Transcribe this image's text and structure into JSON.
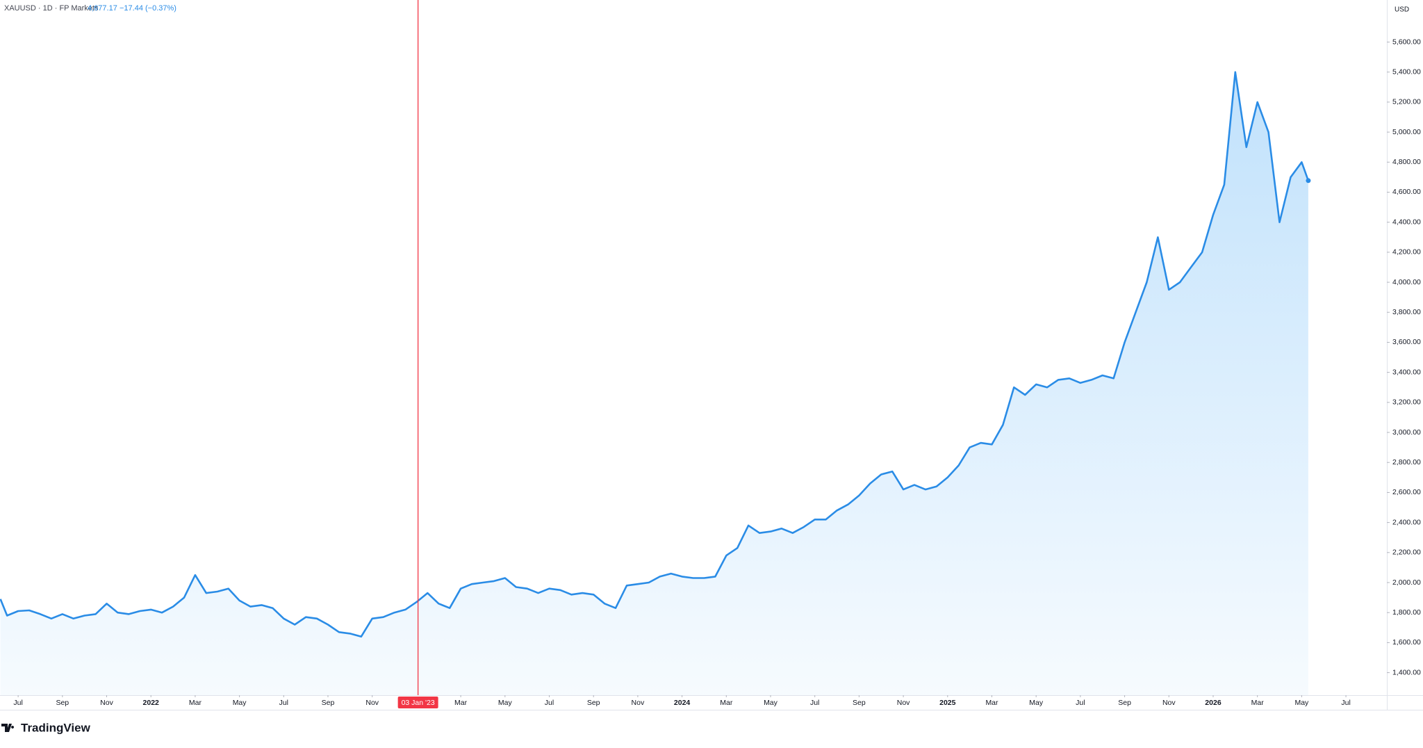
{
  "header": {
    "symbol": "XAUUSD · 1D · FP Markets",
    "price": "4,677.17",
    "change": "−17.44 (−0.37%)"
  },
  "brand": "TradingView",
  "chart_data": {
    "type": "area",
    "currency": "USD",
    "color": "#2a8ce6",
    "x": [
      -6.8,
      -6.5,
      -6,
      -5.5,
      -5,
      -4.5,
      -4,
      -3.5,
      -3,
      -2.5,
      -2,
      -1.5,
      -1,
      -0.5,
      0,
      0.5,
      1,
      1.5,
      2,
      2.5,
      3,
      3.5,
      4,
      4.5,
      5,
      5.5,
      6,
      6.5,
      7,
      7.5,
      8,
      8.5,
      9,
      9.5,
      10,
      10.5,
      11,
      11.5,
      12,
      12.5,
      13,
      13.5,
      14,
      14.5,
      15,
      15.5,
      16,
      16.5,
      17,
      17.5,
      18,
      18.5,
      19,
      19.5,
      20,
      20.5,
      21,
      21.5,
      22,
      22.5,
      23,
      23.5,
      24,
      24.5,
      25,
      25.5,
      26,
      26.5,
      27,
      27.5,
      28,
      28.5,
      29,
      29.5,
      30,
      30.5,
      31,
      31.5,
      32,
      32.5,
      33,
      33.5,
      34,
      34.5,
      35,
      35.5,
      36,
      36.5,
      37,
      37.5,
      38,
      38.5,
      39,
      39.5,
      40,
      40.5,
      41,
      41.5,
      42,
      42.5,
      43,
      43.5,
      44,
      44.5,
      45,
      45.5,
      46,
      46.5,
      47,
      47.5,
      48,
      48.5,
      49,
      49.5,
      50,
      50.5,
      51,
      51.5,
      52,
      52.3
    ],
    "series": [
      {
        "name": "XAUUSD",
        "color": "#2a8ce6",
        "values": [
          1890,
          1780,
          1810,
          1815,
          1790,
          1760,
          1790,
          1760,
          1780,
          1790,
          1860,
          1800,
          1790,
          1810,
          1820,
          1800,
          1840,
          1900,
          2050,
          1930,
          1940,
          1960,
          1880,
          1840,
          1850,
          1830,
          1760,
          1720,
          1770,
          1760,
          1720,
          1670,
          1660,
          1640,
          1760,
          1770,
          1800,
          1820,
          1870,
          1930,
          1860,
          1830,
          1960,
          1990,
          2000,
          2010,
          2030,
          1970,
          1960,
          1930,
          1960,
          1950,
          1920,
          1930,
          1920,
          1860,
          1830,
          1980,
          1990,
          2000,
          2040,
          2060,
          2040,
          2030,
          2030,
          2040,
          2180,
          2230,
          2380,
          2330,
          2340,
          2360,
          2330,
          2370,
          2420,
          2420,
          2480,
          2520,
          2580,
          2660,
          2720,
          2740,
          2620,
          2650,
          2620,
          2640,
          2700,
          2780,
          2900,
          2930,
          2920,
          3050,
          3300,
          3250,
          3320,
          3300,
          3350,
          3360,
          3330,
          3350,
          3380,
          3360,
          3600,
          3800,
          4000,
          4300,
          3950,
          4000,
          4100,
          4200,
          4450,
          4650,
          5400,
          4900,
          5200,
          5000,
          4400,
          4700,
          4800,
          4677.17
        ]
      }
    ],
    "xlim": [
      -6.82,
      55.85
    ],
    "xticks": [
      {
        "value": -6,
        "label": "Jul"
      },
      {
        "value": -4,
        "label": "Sep"
      },
      {
        "value": -2,
        "label": "Nov"
      },
      {
        "value": 0,
        "label": "2022"
      },
      {
        "value": 2,
        "label": "Mar"
      },
      {
        "value": 4,
        "label": "May"
      },
      {
        "value": 6,
        "label": "Jul"
      },
      {
        "value": 8,
        "label": "Sep"
      },
      {
        "value": 10,
        "label": "Nov"
      },
      {
        "value": 14,
        "label": "Mar"
      },
      {
        "value": 16,
        "label": "May"
      },
      {
        "value": 18,
        "label": "Jul"
      },
      {
        "value": 20,
        "label": "Sep"
      },
      {
        "value": 22,
        "label": "Nov"
      },
      {
        "value": 24,
        "label": "2024"
      },
      {
        "value": 26,
        "label": "Mar"
      },
      {
        "value": 28,
        "label": "May"
      },
      {
        "value": 30,
        "label": "Jul"
      },
      {
        "value": 32,
        "label": "Sep"
      },
      {
        "value": 34,
        "label": "Nov"
      },
      {
        "value": 36,
        "label": "2025"
      },
      {
        "value": 38,
        "label": "Mar"
      },
      {
        "value": 40,
        "label": "May"
      },
      {
        "value": 42,
        "label": "Jul"
      },
      {
        "value": 44,
        "label": "Sep"
      },
      {
        "value": 46,
        "label": "Nov"
      },
      {
        "value": 48,
        "label": "2026"
      },
      {
        "value": 50,
        "label": "Mar"
      },
      {
        "value": 52,
        "label": "May"
      },
      {
        "value": 54,
        "label": "Jul"
      }
    ],
    "ylim": [
      1250,
      5880
    ],
    "yticks": [
      {
        "value": 1400,
        "label": "1,400.00"
      },
      {
        "value": 1600,
        "label": "1,600.00"
      },
      {
        "value": 1800,
        "label": "1,800.00"
      },
      {
        "value": 2000,
        "label": "2,000.00"
      },
      {
        "value": 2200,
        "label": "2,200.00"
      },
      {
        "value": 2400,
        "label": "2,400.00"
      },
      {
        "value": 2600,
        "label": "2,600.00"
      },
      {
        "value": 2800,
        "label": "2,800.00"
      },
      {
        "value": 3000,
        "label": "3,000.00"
      },
      {
        "value": 3200,
        "label": "3,200.00"
      },
      {
        "value": 3400,
        "label": "3,400.00"
      },
      {
        "value": 3600,
        "label": "3,600.00"
      },
      {
        "value": 3800,
        "label": "3,800.00"
      },
      {
        "value": 4000,
        "label": "4,000.00"
      },
      {
        "value": 4200,
        "label": "4,200.00"
      },
      {
        "value": 4400,
        "label": "4,400.00"
      },
      {
        "value": 4600,
        "label": "4,600.00"
      },
      {
        "value": 4800,
        "label": "4,800.00"
      },
      {
        "value": 5000,
        "label": "5,000.00"
      },
      {
        "value": 5200,
        "label": "5,200.00"
      },
      {
        "value": 5400,
        "label": "5,400.00"
      },
      {
        "value": 5600,
        "label": "5,600.00"
      }
    ],
    "crosshair": {
      "x": 12.07,
      "label": "03 Jan '23",
      "color": "#f23645"
    },
    "grid": false
  }
}
